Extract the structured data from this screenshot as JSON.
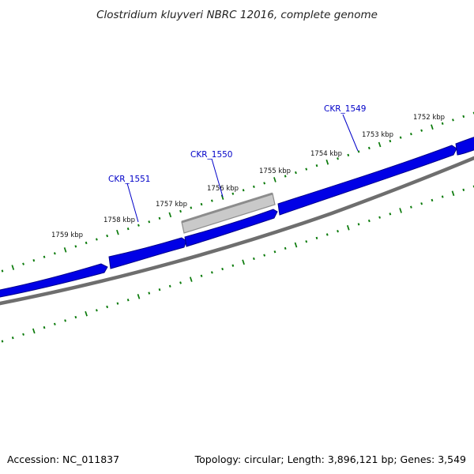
{
  "title": "Clostridium kluyveri NBRC 12016, complete genome",
  "footer": {
    "accession": "Accession: NC_011837",
    "summary": "Topology: circular; Length: 3,896,121 bp; Genes: 3,549"
  },
  "colors": {
    "cds_forward": "#0000e6",
    "cds_forward_edge": "#00008c",
    "gene_other": "#c8c8c8",
    "backbone": "#6e6e6e",
    "ticks": "#0a7a0a",
    "gene_label": "#0000c8"
  },
  "scale": {
    "unit": "kbp",
    "labels": [
      "1752 kbp",
      "1753 kbp",
      "1754 kbp",
      "1755 kbp",
      "1756 kbp",
      "1757 kbp",
      "1758 kbp",
      "1759 kbp"
    ]
  },
  "genes": [
    {
      "name": "CKR_1549"
    },
    {
      "name": "CKR_1550"
    },
    {
      "name": "CKR_1551"
    }
  ]
}
